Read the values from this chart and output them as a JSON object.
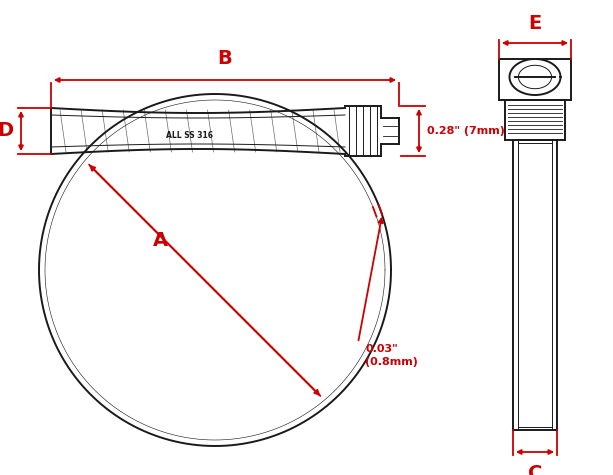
{
  "bg_color": "#ffffff",
  "line_color": "#1a1a1a",
  "dim_color": "#cc0000",
  "text_color": "#1a1a1a",
  "label_text": "ALL SS 316",
  "dim_B_label": "B",
  "dim_A_label": "A",
  "dim_D_label": "D",
  "dim_E_label": "E",
  "dim_C_label": "C",
  "dim_028_label": "0.28\" (7mm)",
  "dim_003_label": "0.03\"\n(0.8mm)"
}
